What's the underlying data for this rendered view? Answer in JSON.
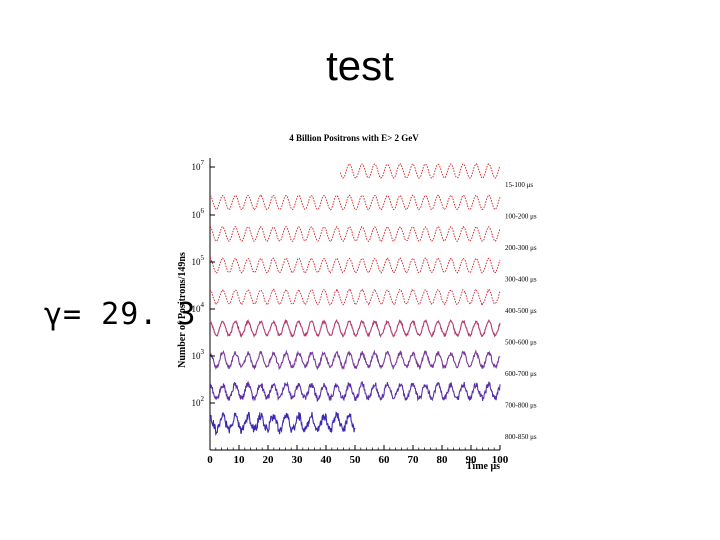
{
  "slide": {
    "title": "test",
    "gamma_label": "γ= 29. 3"
  },
  "chart_data": {
    "type": "line",
    "title": "4 Billion Positrons with E> 2 GeV",
    "xlabel": "Time μs",
    "ylabel": "Number of Positrons/149ns",
    "x_ticks": [
      "0",
      "10",
      "20",
      "30",
      "40",
      "50",
      "60",
      "70",
      "80",
      "90",
      "100"
    ],
    "xlim": [
      0,
      100
    ],
    "y_ticks": [
      {
        "base": "10",
        "exp": "7"
      },
      {
        "base": "10",
        "exp": "6"
      },
      {
        "base": "10",
        "exp": "5"
      },
      {
        "base": "10",
        "exp": "4"
      },
      {
        "base": "10",
        "exp": "3"
      },
      {
        "base": "10",
        "exp": "2"
      }
    ],
    "y_scale": "log",
    "series": [
      {
        "name": "15-100 μs",
        "x_start": 45,
        "x_end": 100,
        "level": 0.0,
        "color": "#d42020",
        "noise": 0.05
      },
      {
        "name": "100-200 μs",
        "x_start": 0,
        "x_end": 100,
        "level": 1.0,
        "color": "#d42020",
        "noise": 0.05
      },
      {
        "name": "200-300 μs",
        "x_start": 0,
        "x_end": 100,
        "level": 2.0,
        "color": "#d42020",
        "noise": 0.06
      },
      {
        "name": "300-400 μs",
        "x_start": 0,
        "x_end": 100,
        "level": 3.0,
        "color": "#d42020",
        "noise": 0.08
      },
      {
        "name": "400-500 μs",
        "x_start": 0,
        "x_end": 100,
        "level": 4.0,
        "color": "#d42838",
        "noise": 0.12
      },
      {
        "name": "500-600 μs",
        "x_start": 0,
        "x_end": 100,
        "level": 5.0,
        "color": "#b43a6a",
        "noise": 0.18
      },
      {
        "name": "600-700 μs",
        "x_start": 0,
        "x_end": 100,
        "level": 6.0,
        "color": "#7a3a9a",
        "noise": 0.28
      },
      {
        "name": "700-800 μs",
        "x_start": 0,
        "x_end": 100,
        "level": 7.0,
        "color": "#5a30a8",
        "noise": 0.42
      },
      {
        "name": "800-850 μs",
        "x_start": 0,
        "x_end": 50,
        "level": 8.0,
        "color": "#3a28b0",
        "noise": 0.65
      }
    ],
    "oscillation_period_us": 4.37,
    "grid": false
  }
}
